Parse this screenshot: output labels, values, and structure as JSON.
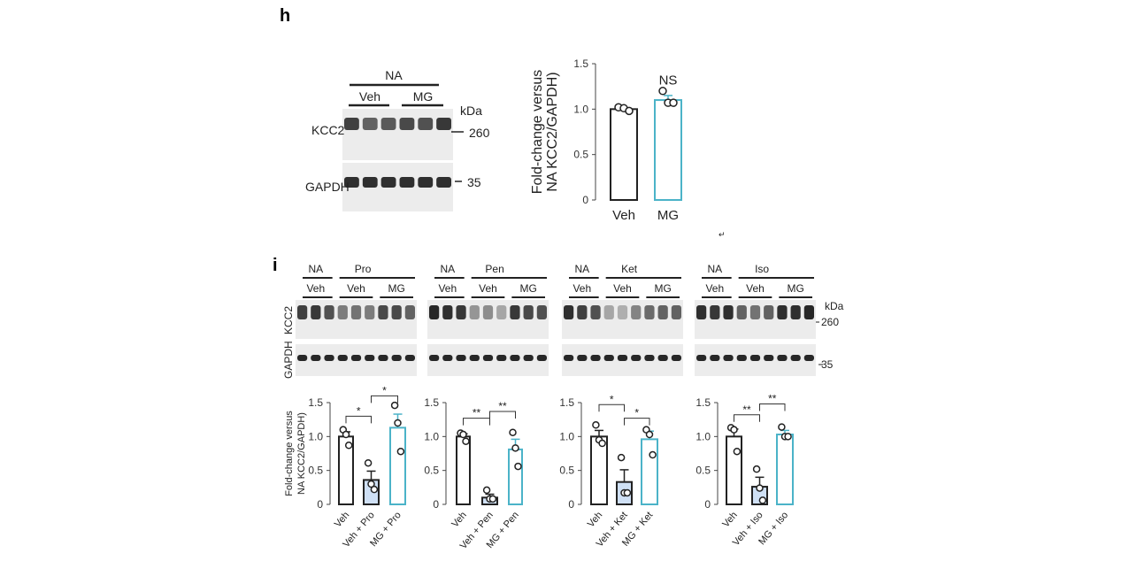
{
  "panels": {
    "h": {
      "letter": "h",
      "blot": {
        "group": "NA",
        "subgroups": [
          "Veh",
          "MG"
        ],
        "rows": [
          "KCC2",
          "GAPDH"
        ],
        "kda_label": "kDa",
        "markers": [
          "260",
          "35"
        ]
      }
    },
    "i": {
      "letter": "i",
      "blots": [
        {
          "control": "NA",
          "drug": "Pro",
          "subgroups": [
            "Veh",
            "Veh",
            "MG"
          ]
        },
        {
          "control": "NA",
          "drug": "Pen",
          "subgroups": [
            "Veh",
            "Veh",
            "MG"
          ]
        },
        {
          "control": "NA",
          "drug": "Ket",
          "subgroups": [
            "Veh",
            "Veh",
            "MG"
          ]
        },
        {
          "control": "NA",
          "drug": "Iso",
          "subgroups": [
            "Veh",
            "Veh",
            "MG"
          ]
        }
      ],
      "rows": [
        "KCC2",
        "GAPDH"
      ],
      "kda_label": "kDa",
      "markers": [
        "260",
        "35"
      ]
    }
  },
  "stray_mark": "↵",
  "colors": {
    "veh_edge": "#222222",
    "drug_fill": "#cfe0f5",
    "mg_edge": "#4bb3c8"
  },
  "chart_data": [
    {
      "type": "bar",
      "panel": "h",
      "ylabel": [
        "Fold-change versus",
        "NA KCC2/GAPDH)"
      ],
      "ylim": [
        0,
        1.5
      ],
      "yticks": [
        "0",
        "0.5",
        "1.0",
        "1.5"
      ],
      "categories": [
        "Veh",
        "MG"
      ],
      "values": [
        1.0,
        1.1
      ],
      "errors": [
        0.0,
        0.05
      ],
      "points": [
        [
          1.02,
          1.01,
          0.98
        ],
        [
          1.2,
          1.07,
          1.07
        ]
      ],
      "styles": [
        "veh",
        "mg"
      ],
      "annotations": [
        {
          "text": "NS",
          "over": 1,
          "y": 1.33
        }
      ],
      "brackets": []
    },
    {
      "type": "bar",
      "panel": "i-Pro",
      "ylabel": [
        "Fold-change versus",
        "NA KCC2/GAPDH)"
      ],
      "ylim": [
        0,
        1.5
      ],
      "yticks": [
        "0",
        "0.5",
        "1.0",
        "1.5"
      ],
      "categories": [
        "Veh",
        "Veh + Pro",
        "MG + Pro"
      ],
      "values": [
        1.0,
        0.36,
        1.13
      ],
      "errors": [
        0.07,
        0.13,
        0.2
      ],
      "points": [
        [
          1.1,
          1.03,
          0.87
        ],
        [
          0.61,
          0.3,
          0.22
        ],
        [
          1.46,
          1.2,
          0.78
        ]
      ],
      "styles": [
        "veh",
        "drug",
        "mg"
      ],
      "annotations": [],
      "brackets": [
        {
          "from": 0,
          "to": 1,
          "label": "*",
          "y": 1.3
        },
        {
          "from": 1,
          "to": 2,
          "label": "*",
          "y": 1.6
        }
      ]
    },
    {
      "type": "bar",
      "panel": "i-Pen",
      "ylabel": [],
      "ylim": [
        0,
        1.5
      ],
      "yticks": [
        "0",
        "0.5",
        "1.0",
        "1.5"
      ],
      "categories": [
        "Veh",
        "Veh + Pen",
        "MG + Pen"
      ],
      "values": [
        1.0,
        0.1,
        0.81
      ],
      "errors": [
        0.04,
        0.05,
        0.15
      ],
      "points": [
        [
          1.05,
          1.03,
          0.93
        ],
        [
          0.21,
          0.08,
          0.08
        ],
        [
          1.06,
          0.83,
          0.56
        ]
      ],
      "styles": [
        "veh",
        "drug",
        "mg"
      ],
      "annotations": [],
      "brackets": [
        {
          "from": 0,
          "to": 1,
          "label": "**",
          "y": 1.27
        },
        {
          "from": 1,
          "to": 2,
          "label": "**",
          "y": 1.37
        }
      ]
    },
    {
      "type": "bar",
      "panel": "i-Ket",
      "ylabel": [],
      "ylim": [
        0,
        1.5
      ],
      "yticks": [
        "0",
        "0.5",
        "1.0",
        "1.5"
      ],
      "categories": [
        "Veh",
        "Veh + Ket",
        "MG + Ket"
      ],
      "values": [
        1.0,
        0.33,
        0.96
      ],
      "errors": [
        0.09,
        0.18,
        0.12
      ],
      "points": [
        [
          1.17,
          0.95,
          0.9
        ],
        [
          0.69,
          0.17,
          0.17
        ],
        [
          1.1,
          1.03,
          0.73
        ]
      ],
      "styles": [
        "veh",
        "drug",
        "mg"
      ],
      "annotations": [],
      "brackets": [
        {
          "from": 0,
          "to": 1,
          "label": "*",
          "y": 1.47
        },
        {
          "from": 1,
          "to": 2,
          "label": "*",
          "y": 1.27
        }
      ]
    },
    {
      "type": "bar",
      "panel": "i-Iso",
      "ylabel": [],
      "ylim": [
        0,
        1.5
      ],
      "yticks": [
        "0",
        "0.5",
        "1.0",
        "1.5"
      ],
      "categories": [
        "Veh",
        "Veh + Iso",
        "MG + Iso"
      ],
      "values": [
        1.0,
        0.26,
        1.03
      ],
      "errors": [
        0.11,
        0.14,
        0.06
      ],
      "points": [
        [
          1.13,
          1.1,
          0.78
        ],
        [
          0.52,
          0.24,
          0.06
        ],
        [
          1.14,
          1.0,
          1.0
        ]
      ],
      "styles": [
        "veh",
        "drug",
        "mg"
      ],
      "annotations": [],
      "brackets": [
        {
          "from": 0,
          "to": 1,
          "label": "**",
          "y": 1.32
        },
        {
          "from": 1,
          "to": 2,
          "label": "**",
          "y": 1.48
        }
      ]
    }
  ]
}
